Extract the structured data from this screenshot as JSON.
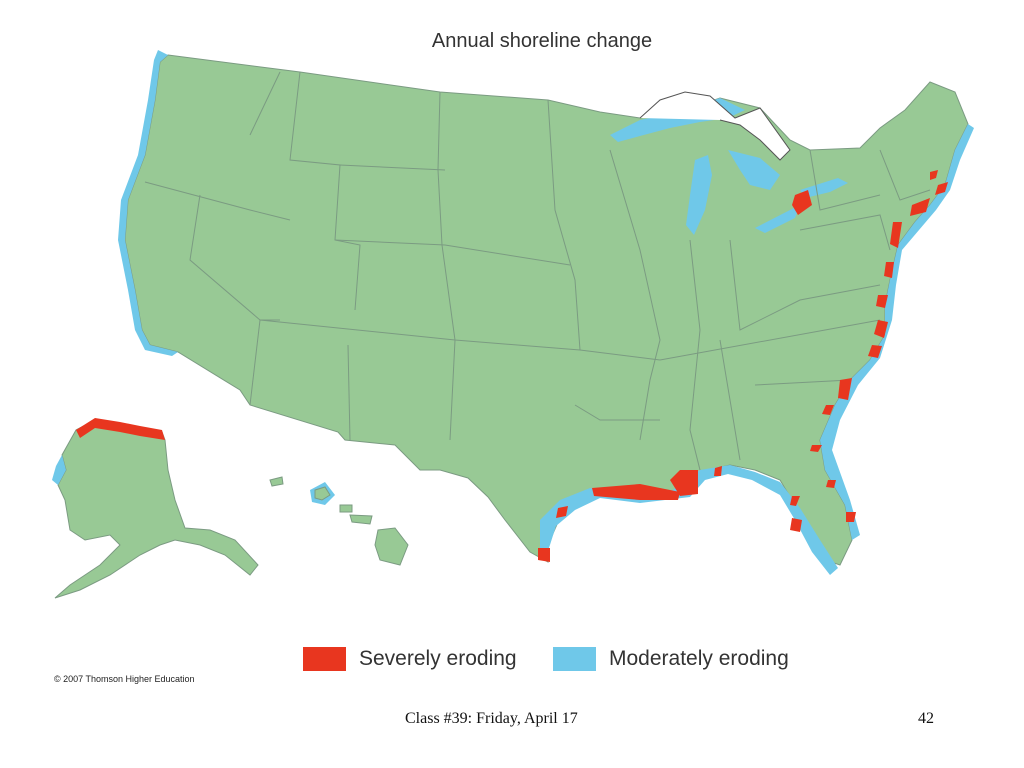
{
  "title": "Annual shoreline change",
  "legend": [
    {
      "label": "Severely eroding",
      "color": "#e8361f"
    },
    {
      "label": "Moderately eroding",
      "color": "#6fc8e9"
    }
  ],
  "colors": {
    "land": "#98c995",
    "border": "#7b9b82",
    "water": "#6fc8e9",
    "severe": "#e8361f",
    "background": "#ffffff"
  },
  "copyright": "© 2007 Thomson Higher Education",
  "footer": {
    "class_text": "Class #39: Friday, April 17",
    "page_number": "42"
  }
}
